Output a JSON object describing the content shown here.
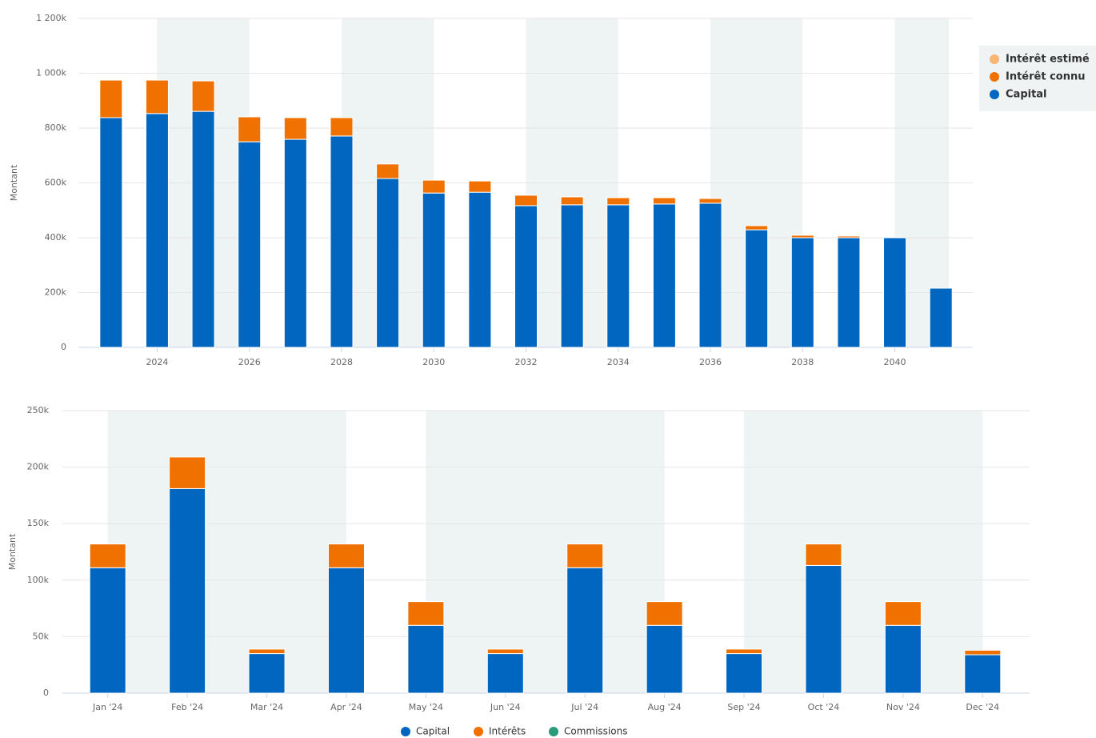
{
  "chart_data": [
    {
      "type": "bar",
      "stacked": true,
      "y_label": "Montant",
      "grid": true,
      "legend": "right",
      "categories": [
        null,
        "2024",
        null,
        "2026",
        null,
        "2028",
        null,
        "2030",
        null,
        "2032",
        null,
        "2034",
        null,
        "2036",
        null,
        "2038",
        null,
        "2040",
        null
      ],
      "series": [
        {
          "name": "Capital",
          "color": "#0066bf",
          "values": [
            838000,
            853000,
            861000,
            750000,
            759000,
            771000,
            616000,
            563000,
            566000,
            517000,
            520000,
            520000,
            523000,
            526000,
            429000,
            400000,
            400000,
            400000,
            216000
          ]
        },
        {
          "name": "Intérêt connu",
          "color": "#f07000",
          "values": [
            137000,
            122000,
            111000,
            91000,
            79000,
            67000,
            53000,
            47000,
            41000,
            38000,
            29000,
            26000,
            23000,
            17000,
            15000,
            9000,
            6000,
            2000,
            0
          ]
        },
        {
          "name": "Intérêt estimé",
          "color": "#f9b574",
          "values": [
            0,
            0,
            0,
            0,
            0,
            0,
            0,
            0,
            0,
            0,
            0,
            0,
            0,
            0,
            0,
            0,
            0,
            0,
            0
          ]
        }
      ],
      "ylim": [
        0,
        1200000
      ],
      "yticks": [
        0,
        {
          "value": 200000,
          "label": "200k"
        },
        {
          "value": 400000,
          "label": "400k"
        },
        {
          "value": 600000,
          "label": "600k"
        },
        {
          "value": 800000,
          "label": "800k"
        },
        {
          "value": 1000000,
          "label": "1 000k"
        },
        {
          "value": 1200000,
          "label": "1 200k"
        }
      ]
    },
    {
      "type": "bar",
      "stacked": true,
      "y_label": "Montant",
      "grid": true,
      "legend": "bottom",
      "categories": [
        "Jan '24",
        "Feb '24",
        "Mar '24",
        "Apr '24",
        "May '24",
        "Jun '24",
        "Jul '24",
        "Aug '24",
        "Sep '24",
        "Oct '24",
        "Nov '24",
        "Dec '24"
      ],
      "series": [
        {
          "name": "Capital",
          "color": "#0066bf",
          "values": [
            111000,
            181000,
            35000,
            111000,
            60000,
            35000,
            111000,
            60000,
            35000,
            113000,
            60000,
            34000
          ]
        },
        {
          "name": "Intérêts",
          "color": "#f07000",
          "values": [
            21000,
            28000,
            4000,
            21000,
            21000,
            4000,
            21000,
            21000,
            4000,
            19000,
            21000,
            4000
          ]
        },
        {
          "name": "Commissions",
          "color": "#2a9a7a",
          "values": [
            0,
            0,
            0,
            0,
            0,
            0,
            0,
            0,
            0,
            0,
            0,
            0
          ]
        }
      ],
      "ylim": [
        0,
        250000
      ],
      "yticks": [
        0,
        {
          "value": 50000,
          "label": "50k"
        },
        {
          "value": 100000,
          "label": "100k"
        },
        {
          "value": 150000,
          "label": "150k"
        },
        {
          "value": 200000,
          "label": "200k"
        },
        {
          "value": 250000,
          "label": "250k"
        }
      ]
    }
  ]
}
